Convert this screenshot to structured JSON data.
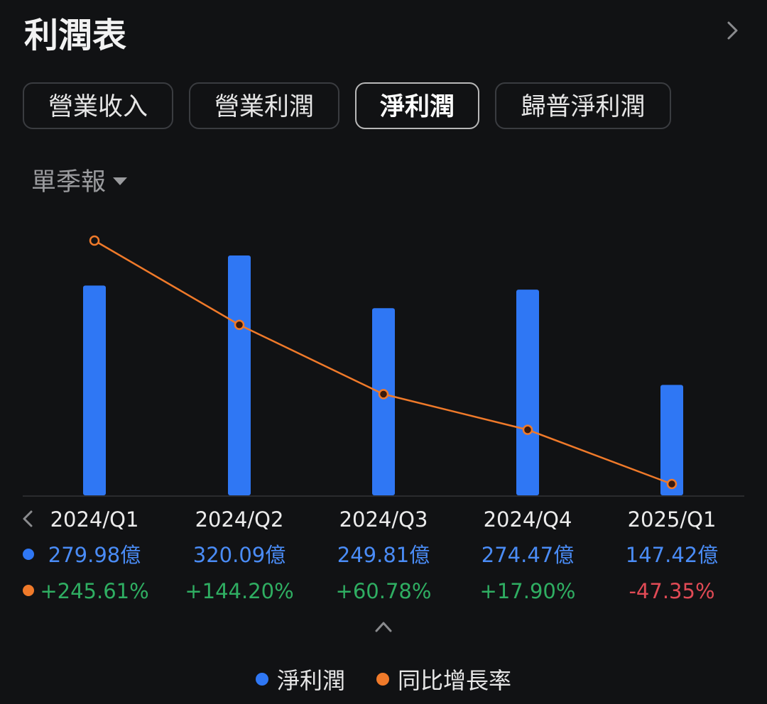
{
  "header": {
    "title": "利潤表"
  },
  "tabs": [
    {
      "label": "營業收入",
      "active": false
    },
    {
      "label": "營業利潤",
      "active": false
    },
    {
      "label": "淨利潤",
      "active": true
    },
    {
      "label": "歸普淨利潤",
      "active": false
    }
  ],
  "period": {
    "label": "單季報"
  },
  "colors": {
    "bar": "#2f77f4",
    "line": "#f07a2a",
    "positive": "#2fae62",
    "negative": "#e04a55",
    "value_text": "#4a8cf6"
  },
  "chart_data": {
    "type": "bar",
    "categories": [
      "2024/Q1",
      "2024/Q2",
      "2024/Q3",
      "2024/Q4",
      "2025/Q1"
    ],
    "series": [
      {
        "name": "淨利潤",
        "values": [
          279.98,
          320.09,
          249.81,
          274.47,
          147.42
        ],
        "labels": [
          "279.98億",
          "320.09億",
          "249.81億",
          "274.47億",
          "147.42億"
        ]
      },
      {
        "name": "同比增長率",
        "type": "line",
        "values": [
          245.61,
          144.2,
          60.78,
          17.9,
          -47.35
        ],
        "labels": [
          "+245.61%",
          "+144.20%",
          "+60.78%",
          "+17.90%",
          "-47.35%"
        ]
      }
    ]
  },
  "legend": {
    "items": [
      "淨利潤",
      "同比增長率"
    ]
  }
}
